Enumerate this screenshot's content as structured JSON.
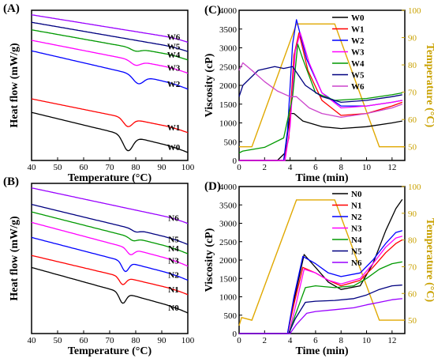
{
  "chart_data": [
    {
      "panel": "(A)",
      "type": "line",
      "xlabel": "Temperature (°C)",
      "ylabel": "Heat flow (mW/g)",
      "xlim": [
        40,
        100
      ],
      "xticks": [
        40,
        50,
        60,
        70,
        80,
        90,
        100
      ],
      "series": [
        {
          "name": "W0",
          "color": "#000000",
          "start": 0.68,
          "slope": 0.0042,
          "dip_x": 77,
          "dip_depth": 0.1,
          "dip_width": 2.6
        },
        {
          "name": "W1",
          "color": "#ff0000",
          "start": 0.59,
          "slope": 0.0035,
          "dip_x": 77,
          "dip_depth": 0.055,
          "dip_width": 2.4
        },
        {
          "name": "W2",
          "color": "#0000ff",
          "start": 0.27,
          "slope": 0.004,
          "dip_x": 81,
          "dip_depth": 0.055,
          "dip_width": 2.8
        },
        {
          "name": "W3",
          "color": "#ff00ff",
          "start": 0.2,
          "slope": 0.0034,
          "dip_x": 80,
          "dip_depth": 0.03,
          "dip_width": 2.6
        },
        {
          "name": "W4",
          "color": "#009900",
          "start": 0.13,
          "slope": 0.0031,
          "dip_x": 80,
          "dip_depth": 0.018,
          "dip_width": 2.6
        },
        {
          "name": "W5",
          "color": "#000080",
          "start": 0.08,
          "slope": 0.003,
          "dip_x": 80,
          "dip_depth": 0.0,
          "dip_width": 2.6
        },
        {
          "name": "W6",
          "color": "#9900ff",
          "start": 0.03,
          "slope": 0.0028,
          "dip_x": 80,
          "dip_depth": 0.0,
          "dip_width": 2.6
        }
      ]
    },
    {
      "panel": "(B)",
      "type": "line",
      "xlabel": "Temperature (°C)",
      "ylabel": "Heat flow (mW/g)",
      "xlim": [
        40,
        100
      ],
      "xticks": [
        40,
        50,
        60,
        70,
        80,
        90,
        100
      ],
      "series": [
        {
          "name": "N0",
          "color": "#000000",
          "start": 0.56,
          "slope": 0.0048,
          "dip_x": 75,
          "dip_depth": 0.07,
          "dip_width": 1.8
        },
        {
          "name": "N1",
          "color": "#ff0000",
          "start": 0.48,
          "slope": 0.0041,
          "dip_x": 75,
          "dip_depth": 0.05,
          "dip_width": 1.8
        },
        {
          "name": "N2",
          "color": "#0000ff",
          "start": 0.36,
          "slope": 0.0045,
          "dip_x": 76,
          "dip_depth": 0.065,
          "dip_width": 1.8
        },
        {
          "name": "N3",
          "color": "#ff00ff",
          "start": 0.26,
          "slope": 0.0046,
          "dip_x": 78,
          "dip_depth": 0.04,
          "dip_width": 1.9
        },
        {
          "name": "N4",
          "color": "#009900",
          "start": 0.19,
          "slope": 0.0044,
          "dip_x": 79,
          "dip_depth": 0.02,
          "dip_width": 2.0
        },
        {
          "name": "N5",
          "color": "#000080",
          "start": 0.14,
          "slope": 0.0042,
          "dip_x": 80,
          "dip_depth": 0.015,
          "dip_width": 2.0
        },
        {
          "name": "N6",
          "color": "#9900ff",
          "start": 0.03,
          "slope": 0.0037,
          "dip_x": 80,
          "dip_depth": 0.0,
          "dip_width": 2.0
        }
      ]
    },
    {
      "panel": "(C)",
      "type": "line",
      "xlabel": "Time (min)",
      "ylabel": "Viscosity (cP)",
      "y2label": "Temperature (°C)",
      "xlim": [
        0,
        13
      ],
      "ylim": [
        0,
        4000
      ],
      "y2lim": [
        45,
        100
      ],
      "xticks": [
        0,
        2,
        4,
        6,
        8,
        10,
        12
      ],
      "yticks": [
        0,
        500,
        1000,
        1500,
        2000,
        2500,
        3000,
        3500,
        4000
      ],
      "y2ticks": [
        50,
        60,
        70,
        80,
        90,
        100
      ],
      "temperature_profile": {
        "color": "#e0a800",
        "x": [
          0,
          1,
          4.5,
          7.5,
          11,
          13
        ],
        "y": [
          50,
          50,
          95,
          95,
          50,
          50
        ]
      },
      "series": [
        {
          "name": "W0",
          "color": "#000000",
          "x": [
            0,
            3,
            3.6,
            4.0,
            4.3,
            5.0,
            6.5,
            8.0,
            10.0,
            12.0,
            12.8
          ],
          "y": [
            0,
            0,
            200,
            1250,
            1250,
            1050,
            900,
            850,
            900,
            1000,
            1050
          ]
        },
        {
          "name": "W1",
          "color": "#ff0000",
          "x": [
            0,
            3.5,
            3.9,
            4.3,
            4.7,
            5.4,
            6.5,
            8.0,
            10.0,
            12.0,
            12.8
          ],
          "y": [
            0,
            0,
            600,
            2800,
            3400,
            2400,
            1600,
            1200,
            1250,
            1450,
            1550
          ]
        },
        {
          "name": "W2",
          "color": "#0000ff",
          "x": [
            0,
            3.5,
            3.8,
            4.2,
            4.5,
            5.3,
            6.5,
            8.0,
            10.0,
            12.0,
            12.8
          ],
          "y": [
            0,
            0,
            800,
            3100,
            3750,
            2700,
            1800,
            1450,
            1450,
            1550,
            1600
          ]
        },
        {
          "name": "W3",
          "color": "#ff00ff",
          "x": [
            0,
            3.6,
            4.0,
            4.4,
            4.8,
            5.5,
            6.5,
            8.0,
            10.0,
            12.0,
            12.8
          ],
          "y": [
            0,
            0,
            900,
            2900,
            3400,
            2600,
            1800,
            1400,
            1450,
            1550,
            1600
          ]
        },
        {
          "name": "W4",
          "color": "#009900",
          "x": [
            0,
            0.3,
            2.0,
            3.5,
            4.2,
            4.6,
            5.0,
            6.0,
            7.5,
            10.0,
            12.0,
            12.8
          ],
          "y": [
            200,
            250,
            350,
            600,
            1700,
            3100,
            2700,
            1800,
            1600,
            1650,
            1750,
            1800
          ]
        },
        {
          "name": "W5",
          "color": "#000080",
          "x": [
            0,
            0.3,
            1.5,
            2.8,
            3.5,
            4.2,
            4.6,
            5.2,
            6.5,
            8.0,
            10.0,
            12.0,
            12.8
          ],
          "y": [
            1700,
            2000,
            2400,
            2500,
            2450,
            2500,
            2300,
            2000,
            1700,
            1550,
            1600,
            1700,
            1750
          ]
        },
        {
          "name": "W6",
          "color": "#cc44cc",
          "x": [
            0,
            0.3,
            1.0,
            2.0,
            3.0,
            4.0,
            4.5,
            5.5,
            6.5,
            8.0,
            10.0,
            12.0,
            12.8
          ],
          "y": [
            2400,
            2600,
            2400,
            2100,
            1850,
            1700,
            1700,
            1400,
            1250,
            1150,
            1250,
            1400,
            1500
          ]
        }
      ]
    },
    {
      "panel": "(D)",
      "type": "line",
      "xlabel": "Time (min)",
      "ylabel": "Viscosity (cP)",
      "y2label": "Temperature (°C)",
      "xlim": [
        0,
        13
      ],
      "ylim": [
        0,
        4000
      ],
      "y2lim": [
        45,
        100
      ],
      "xticks": [
        0,
        2,
        4,
        6,
        8,
        10,
        12
      ],
      "yticks": [
        0,
        500,
        1000,
        1500,
        2000,
        2500,
        3000,
        3500,
        4000
      ],
      "y2ticks": [
        50,
        60,
        70,
        80,
        90,
        100
      ],
      "temperature_profile": {
        "color": "#e0a800",
        "x": [
          0,
          0.2,
          1.0,
          4.5,
          7.5,
          11.0,
          13.0
        ],
        "y": [
          48,
          51,
          50,
          95,
          95,
          50,
          50
        ]
      },
      "series": [
        {
          "name": "N0",
          "color": "#000000",
          "x": [
            0,
            3.8,
            4.3,
            5.1,
            6.0,
            7.0,
            8.0,
            9.5,
            10.5,
            11.5,
            12.3,
            12.8
          ],
          "y": [
            0,
            0,
            900,
            2150,
            1800,
            1400,
            1200,
            1300,
            1900,
            2800,
            3400,
            3650
          ]
        },
        {
          "name": "N1",
          "color": "#ff0000",
          "x": [
            0,
            3.8,
            4.3,
            5.0,
            6.0,
            7.0,
            8.0,
            9.5,
            10.5,
            11.5,
            12.3,
            12.8
          ],
          "y": [
            0,
            0,
            800,
            1800,
            1650,
            1450,
            1300,
            1450,
            1800,
            2200,
            2450,
            2550
          ]
        },
        {
          "name": "N2",
          "color": "#0000ff",
          "x": [
            0,
            3.8,
            4.3,
            5.0,
            6.0,
            7.0,
            8.0,
            9.5,
            10.5,
            11.5,
            12.3,
            12.8
          ],
          "y": [
            0,
            0,
            1000,
            2100,
            1900,
            1650,
            1550,
            1650,
            2000,
            2450,
            2750,
            2800
          ]
        },
        {
          "name": "N3",
          "color": "#ff00ff",
          "x": [
            0,
            3.9,
            4.4,
            5.1,
            6.0,
            7.0,
            8.0,
            9.5,
            10.5,
            11.5,
            12.3,
            12.8
          ],
          "y": [
            0,
            0,
            700,
            1750,
            1650,
            1450,
            1350,
            1500,
            1900,
            2350,
            2600,
            2650
          ]
        },
        {
          "name": "N4",
          "color": "#009900",
          "x": [
            0,
            3.9,
            4.4,
            5.2,
            6.0,
            7.5,
            9.0,
            10.0,
            11.0,
            12.0,
            12.8
          ],
          "y": [
            0,
            0,
            500,
            1250,
            1300,
            1250,
            1300,
            1500,
            1750,
            1900,
            1950
          ]
        },
        {
          "name": "N5",
          "color": "#000080",
          "x": [
            0,
            3.9,
            4.4,
            5.2,
            6.0,
            7.5,
            9.0,
            10.0,
            11.0,
            12.0,
            12.8
          ],
          "y": [
            0,
            0,
            400,
            850,
            880,
            900,
            950,
            1050,
            1200,
            1300,
            1320
          ]
        },
        {
          "name": "N6",
          "color": "#9900ff",
          "x": [
            0,
            4.0,
            4.5,
            5.3,
            6.0,
            7.5,
            9.0,
            10.0,
            11.0,
            12.0,
            12.8
          ],
          "y": [
            0,
            0,
            250,
            550,
            600,
            650,
            700,
            780,
            850,
            920,
            950
          ]
        }
      ]
    }
  ]
}
